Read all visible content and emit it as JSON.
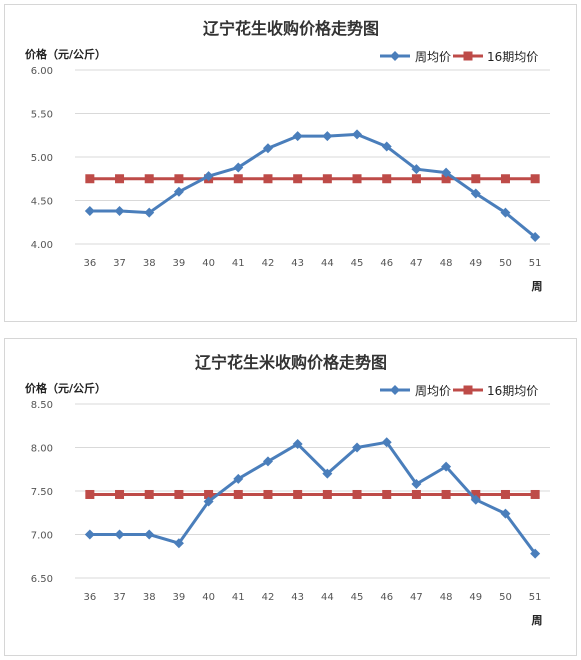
{
  "chart_data": [
    {
      "type": "line",
      "title": "辽宁花生收购价格走势图",
      "ylabel": "价格（元/公斤）",
      "xlabel": "周",
      "categories": [
        "36",
        "37",
        "38",
        "39",
        "40",
        "41",
        "42",
        "43",
        "44",
        "45",
        "46",
        "47",
        "48",
        "49",
        "50",
        "51"
      ],
      "ylim": [
        4.0,
        6.0
      ],
      "yticks": [
        "4.00",
        "4.50",
        "5.00",
        "5.50",
        "6.00"
      ],
      "grid": true,
      "legend": "top-right",
      "series": [
        {
          "name": "周均价",
          "color": "#4a7ebb",
          "marker": "diamond",
          "values": [
            4.38,
            4.38,
            4.36,
            4.6,
            4.78,
            4.88,
            5.1,
            5.24,
            5.24,
            5.26,
            5.12,
            4.86,
            4.82,
            4.58,
            4.36,
            4.08
          ]
        },
        {
          "name": "16期均价",
          "color": "#be4b48",
          "marker": "square",
          "values": [
            4.75,
            4.75,
            4.75,
            4.75,
            4.75,
            4.75,
            4.75,
            4.75,
            4.75,
            4.75,
            4.75,
            4.75,
            4.75,
            4.75,
            4.75,
            4.75
          ]
        }
      ]
    },
    {
      "type": "line",
      "title": "辽宁花生米收购价格走势图",
      "ylabel": "价格（元/公斤）",
      "xlabel": "周",
      "categories": [
        "36",
        "37",
        "38",
        "39",
        "40",
        "41",
        "42",
        "43",
        "44",
        "45",
        "46",
        "47",
        "48",
        "49",
        "50",
        "51"
      ],
      "ylim": [
        6.5,
        8.5
      ],
      "yticks": [
        "6.50",
        "7.00",
        "7.50",
        "8.00",
        "8.50"
      ],
      "grid": true,
      "legend": "top-right",
      "series": [
        {
          "name": "周均价",
          "color": "#4a7ebb",
          "marker": "diamond",
          "values": [
            7.0,
            7.0,
            7.0,
            6.9,
            7.38,
            7.64,
            7.84,
            8.04,
            7.7,
            8.0,
            8.06,
            7.58,
            7.78,
            7.4,
            7.24,
            6.78
          ]
        },
        {
          "name": "16期均价",
          "color": "#be4b48",
          "marker": "square",
          "values": [
            7.46,
            7.46,
            7.46,
            7.46,
            7.46,
            7.46,
            7.46,
            7.46,
            7.46,
            7.46,
            7.46,
            7.46,
            7.46,
            7.46,
            7.46,
            7.46
          ]
        }
      ]
    }
  ]
}
